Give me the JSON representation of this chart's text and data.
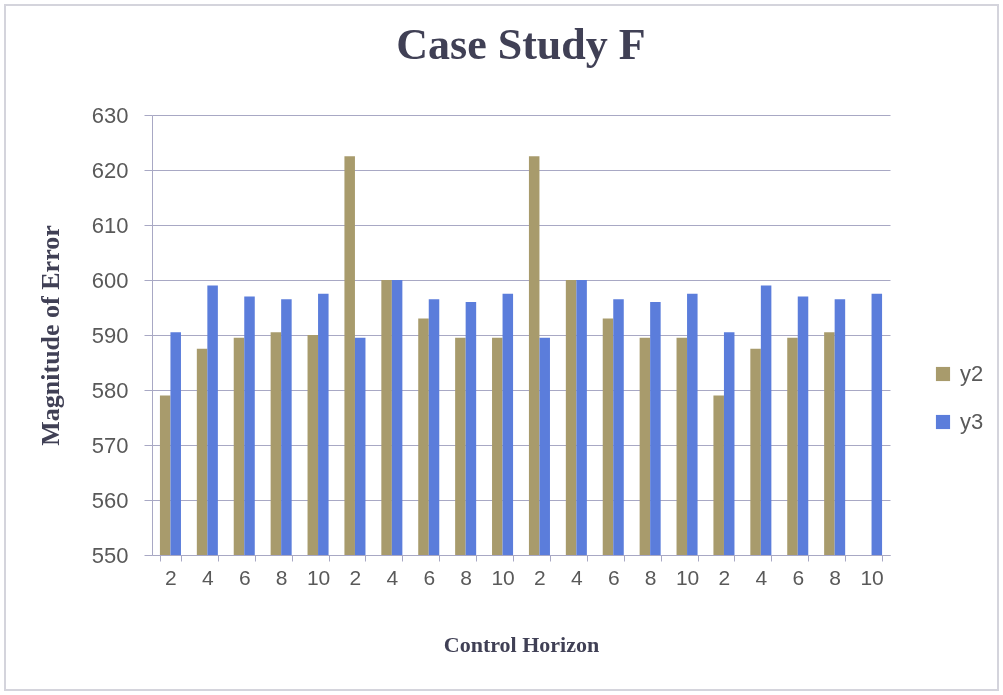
{
  "chart_data": {
    "type": "bar",
    "title": "Case Study F",
    "xlabel": "Control Horizon",
    "ylabel": "Magnitude of Error",
    "categories": [
      "2",
      "4",
      "6",
      "8",
      "10",
      "2",
      "4",
      "6",
      "8",
      "10",
      "2",
      "4",
      "6",
      "8",
      "10",
      "2",
      "4",
      "6",
      "8",
      "10"
    ],
    "series": [
      {
        "name": "y2",
        "color": "#a89b6c",
        "values": [
          579,
          587.5,
          589.5,
          590.5,
          590,
          622.5,
          600,
          593,
          589.5,
          589.5,
          622.5,
          600,
          593,
          589.5,
          589.5,
          579,
          587.5,
          589.5,
          590.5,
          null
        ]
      },
      {
        "name": "y3",
        "color": "#5b7ddb",
        "values": [
          590.5,
          599,
          597,
          596.5,
          597.5,
          589.5,
          600,
          596.5,
          596,
          597.5,
          589.5,
          600,
          596.5,
          596,
          597.5,
          590.5,
          599,
          597,
          596.5,
          597.5
        ]
      }
    ],
    "ylim": [
      550,
      630
    ],
    "yticks": [
      550,
      560,
      570,
      580,
      590,
      600,
      610,
      620,
      630
    ],
    "grid": "y",
    "legend": "right"
  }
}
